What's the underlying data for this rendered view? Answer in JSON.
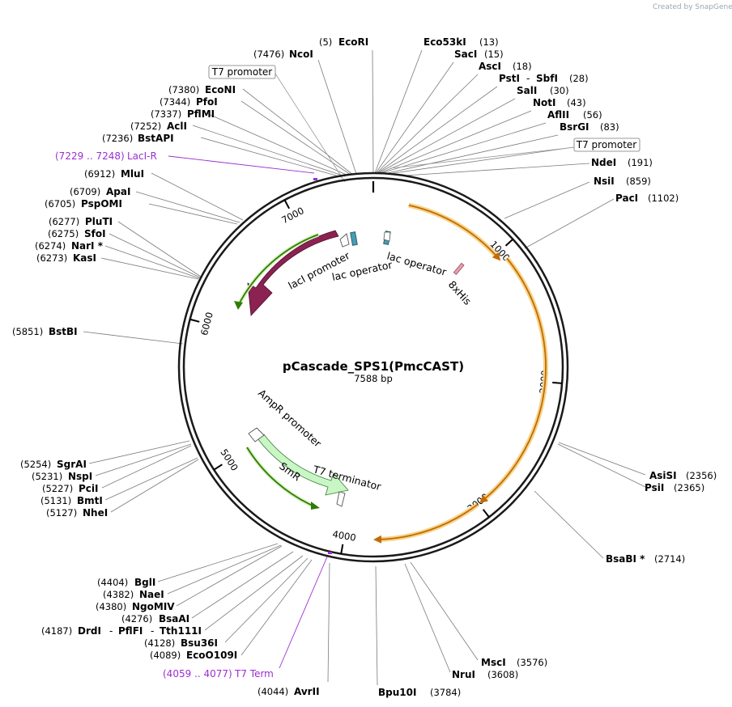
{
  "watermark": "Created by  SnapGene",
  "plasmid": {
    "name": "pCascade_SPS1(PmcCAST)",
    "length_label": "7588 bp"
  },
  "ticks": [
    "1000",
    "2000",
    "3000",
    "4000",
    "5000",
    "6000",
    "7000"
  ],
  "sites_top_left": [
    {
      "pos": "(5)",
      "name": "EcoRI"
    },
    {
      "pos": "(7476)",
      "name": "NcoI"
    },
    {
      "pos": "(7380)",
      "name": "EcoNI"
    },
    {
      "pos": "(7344)",
      "name": "PfoI"
    },
    {
      "pos": "(7337)",
      "name": "PflMI"
    },
    {
      "pos": "(7252)",
      "name": "AclI"
    },
    {
      "pos": "(7236)",
      "name": "BstAPI"
    },
    {
      "pos": "(6912)",
      "name": "MluI"
    },
    {
      "pos": "(6709)",
      "name": "ApaI"
    },
    {
      "pos": "(6705)",
      "name": "PspOMI"
    },
    {
      "pos": "(6277)",
      "name": "PluTI"
    },
    {
      "pos": "(6275)",
      "name": "SfoI"
    },
    {
      "pos": "(6274)",
      "name": "NarI *"
    },
    {
      "pos": "(6273)",
      "name": "KasI"
    },
    {
      "pos": "(5851)",
      "name": "BstBI"
    }
  ],
  "sites_top_right": [
    {
      "name": "Eco53kI",
      "pos": "(13)"
    },
    {
      "name": "SacI",
      "pos": "(15)"
    },
    {
      "name": "AscI",
      "pos": "(18)"
    },
    {
      "name": "PstI",
      "sep": "-",
      "name2": "SbfI",
      "pos": "(28)"
    },
    {
      "name": "SalI",
      "pos": "(30)"
    },
    {
      "name": "NotI",
      "pos": "(43)"
    },
    {
      "name": "AflII",
      "pos": "(56)"
    },
    {
      "name": "BsrGI",
      "pos": "(83)"
    },
    {
      "name": "NdeI",
      "pos": "(191)"
    },
    {
      "name": "NsiI",
      "pos": "(859)"
    },
    {
      "name": "PacI",
      "pos": "(1102)"
    }
  ],
  "sites_right": [
    {
      "name": "AsiSI",
      "pos": "(2356)"
    },
    {
      "name": "PsiI",
      "pos": "(2365)"
    },
    {
      "name": "BsaBI *",
      "pos": "(2714)"
    }
  ],
  "sites_bottom_right": [
    {
      "name": "MscI",
      "pos": "(3576)"
    },
    {
      "name": "NruI",
      "pos": "(3608)"
    },
    {
      "name": "Bpu10I",
      "pos": "(3784)"
    }
  ],
  "sites_left": [
    {
      "pos": "(5254)",
      "name": "SgrAI"
    },
    {
      "pos": "(5231)",
      "name": "NspI"
    },
    {
      "pos": "(5227)",
      "name": "PciI"
    },
    {
      "pos": "(5131)",
      "name": "BmtI"
    },
    {
      "pos": "(5127)",
      "name": "NheI"
    }
  ],
  "sites_bottom_left": [
    {
      "pos": "(4404)",
      "name": "BglI"
    },
    {
      "pos": "(4382)",
      "name": "NaeI"
    },
    {
      "pos": "(4380)",
      "name": "NgoMIV"
    },
    {
      "pos": "(4276)",
      "name": "BsaAI"
    },
    {
      "pos": "(4187)",
      "name": "DrdI",
      "sep": "-",
      "name2": "PflFI",
      "sep2": "-",
      "name3": "Tth111I"
    },
    {
      "pos": "(4128)",
      "name": "Bsu36I"
    },
    {
      "pos": "(4089)",
      "name": "EcoO109I"
    },
    {
      "pos": "(4044)",
      "name": "AvrII"
    }
  ],
  "primers": [
    {
      "range": "(7229 .. 7248)",
      "name": "LacI-R"
    },
    {
      "range": "(4059 .. 4077)",
      "name": "T7 Term"
    }
  ],
  "boxed_features": [
    "T7 promoter",
    "T7 promoter"
  ],
  "features": [
    "lacI",
    "lacI promoter",
    "lac operator",
    "lac operator",
    "8xHis",
    "AmpR promoter",
    "SmR",
    "T7 terminator"
  ],
  "colors": {
    "lacI": "#8b2252",
    "SmR": "#c8f7c5",
    "orf": "#c46a00",
    "orf_glow": "#f6d48a",
    "green_orf": "#2f7d00",
    "operator": "#4b9bb5",
    "primer": "#9b2fd0",
    "his": "#e6a0b0"
  }
}
